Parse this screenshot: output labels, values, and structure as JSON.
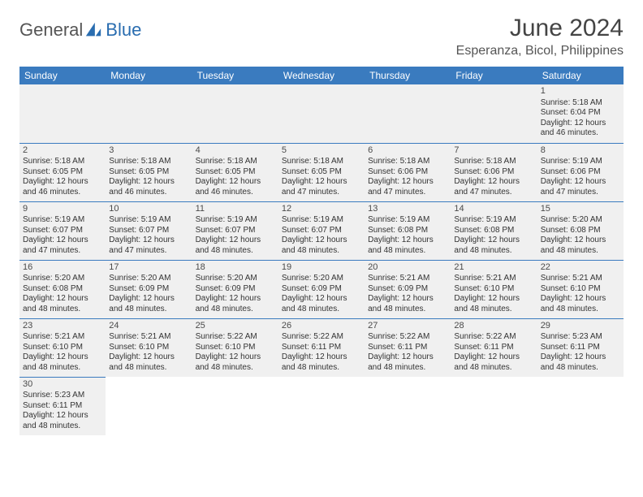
{
  "logo": {
    "word1": "General",
    "word2": "Blue"
  },
  "title": "June 2024",
  "location": "Esperanza, Bicol, Philippines",
  "colors": {
    "header_bg": "#3a7bbf",
    "header_text": "#ffffff",
    "cell_bg": "#f0f0f0",
    "border": "#3a7bbf",
    "logo_accent": "#2a6db0",
    "text": "#333333"
  },
  "weekdays": [
    "Sunday",
    "Monday",
    "Tuesday",
    "Wednesday",
    "Thursday",
    "Friday",
    "Saturday"
  ],
  "weeks": [
    [
      null,
      null,
      null,
      null,
      null,
      null,
      {
        "n": 1,
        "sr": "5:18 AM",
        "ss": "6:04 PM",
        "dl": "12 hours and 46 minutes."
      }
    ],
    [
      {
        "n": 2,
        "sr": "5:18 AM",
        "ss": "6:05 PM",
        "dl": "12 hours and 46 minutes."
      },
      {
        "n": 3,
        "sr": "5:18 AM",
        "ss": "6:05 PM",
        "dl": "12 hours and 46 minutes."
      },
      {
        "n": 4,
        "sr": "5:18 AM",
        "ss": "6:05 PM",
        "dl": "12 hours and 46 minutes."
      },
      {
        "n": 5,
        "sr": "5:18 AM",
        "ss": "6:05 PM",
        "dl": "12 hours and 47 minutes."
      },
      {
        "n": 6,
        "sr": "5:18 AM",
        "ss": "6:06 PM",
        "dl": "12 hours and 47 minutes."
      },
      {
        "n": 7,
        "sr": "5:18 AM",
        "ss": "6:06 PM",
        "dl": "12 hours and 47 minutes."
      },
      {
        "n": 8,
        "sr": "5:19 AM",
        "ss": "6:06 PM",
        "dl": "12 hours and 47 minutes."
      }
    ],
    [
      {
        "n": 9,
        "sr": "5:19 AM",
        "ss": "6:07 PM",
        "dl": "12 hours and 47 minutes."
      },
      {
        "n": 10,
        "sr": "5:19 AM",
        "ss": "6:07 PM",
        "dl": "12 hours and 47 minutes."
      },
      {
        "n": 11,
        "sr": "5:19 AM",
        "ss": "6:07 PM",
        "dl": "12 hours and 48 minutes."
      },
      {
        "n": 12,
        "sr": "5:19 AM",
        "ss": "6:07 PM",
        "dl": "12 hours and 48 minutes."
      },
      {
        "n": 13,
        "sr": "5:19 AM",
        "ss": "6:08 PM",
        "dl": "12 hours and 48 minutes."
      },
      {
        "n": 14,
        "sr": "5:19 AM",
        "ss": "6:08 PM",
        "dl": "12 hours and 48 minutes."
      },
      {
        "n": 15,
        "sr": "5:20 AM",
        "ss": "6:08 PM",
        "dl": "12 hours and 48 minutes."
      }
    ],
    [
      {
        "n": 16,
        "sr": "5:20 AM",
        "ss": "6:08 PM",
        "dl": "12 hours and 48 minutes."
      },
      {
        "n": 17,
        "sr": "5:20 AM",
        "ss": "6:09 PM",
        "dl": "12 hours and 48 minutes."
      },
      {
        "n": 18,
        "sr": "5:20 AM",
        "ss": "6:09 PM",
        "dl": "12 hours and 48 minutes."
      },
      {
        "n": 19,
        "sr": "5:20 AM",
        "ss": "6:09 PM",
        "dl": "12 hours and 48 minutes."
      },
      {
        "n": 20,
        "sr": "5:21 AM",
        "ss": "6:09 PM",
        "dl": "12 hours and 48 minutes."
      },
      {
        "n": 21,
        "sr": "5:21 AM",
        "ss": "6:10 PM",
        "dl": "12 hours and 48 minutes."
      },
      {
        "n": 22,
        "sr": "5:21 AM",
        "ss": "6:10 PM",
        "dl": "12 hours and 48 minutes."
      }
    ],
    [
      {
        "n": 23,
        "sr": "5:21 AM",
        "ss": "6:10 PM",
        "dl": "12 hours and 48 minutes."
      },
      {
        "n": 24,
        "sr": "5:21 AM",
        "ss": "6:10 PM",
        "dl": "12 hours and 48 minutes."
      },
      {
        "n": 25,
        "sr": "5:22 AM",
        "ss": "6:10 PM",
        "dl": "12 hours and 48 minutes."
      },
      {
        "n": 26,
        "sr": "5:22 AM",
        "ss": "6:11 PM",
        "dl": "12 hours and 48 minutes."
      },
      {
        "n": 27,
        "sr": "5:22 AM",
        "ss": "6:11 PM",
        "dl": "12 hours and 48 minutes."
      },
      {
        "n": 28,
        "sr": "5:22 AM",
        "ss": "6:11 PM",
        "dl": "12 hours and 48 minutes."
      },
      {
        "n": 29,
        "sr": "5:23 AM",
        "ss": "6:11 PM",
        "dl": "12 hours and 48 minutes."
      }
    ],
    [
      {
        "n": 30,
        "sr": "5:23 AM",
        "ss": "6:11 PM",
        "dl": "12 hours and 48 minutes."
      },
      null,
      null,
      null,
      null,
      null,
      null
    ]
  ],
  "labels": {
    "sunrise": "Sunrise:",
    "sunset": "Sunset:",
    "daylight": "Daylight:"
  }
}
